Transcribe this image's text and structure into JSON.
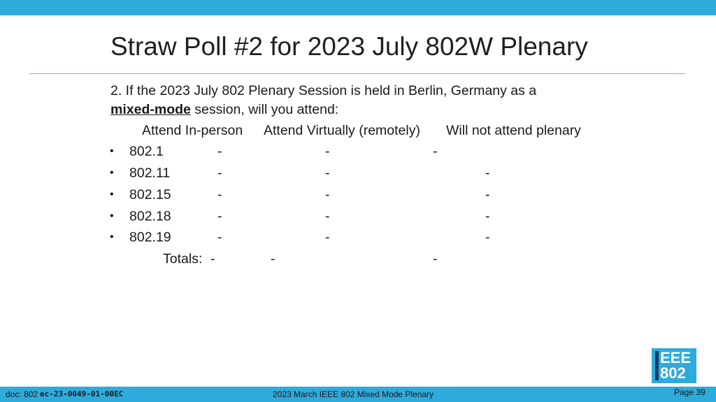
{
  "slide": {
    "title": "Straw Poll #2 for 2023 July 802W Plenary",
    "question_line1": "2. If the 2023 July 802 Plenary Session is held in Berlin, Germany as a",
    "question_emphasis": "mixed-mode",
    "question_line2_rest": " session, will you attend:",
    "columns": [
      "Attend In-person",
      "Attend Virtually (remotely)",
      "Will not attend plenary"
    ],
    "rows": [
      {
        "group": "802.1",
        "values": [
          "-",
          "-",
          "-"
        ]
      },
      {
        "group": "802.11",
        "values": [
          "-",
          "-",
          "-"
        ]
      },
      {
        "group": "802.15",
        "values": [
          "-",
          "-",
          "-"
        ]
      },
      {
        "group": "802.18",
        "values": [
          "-",
          "-",
          "-"
        ]
      },
      {
        "group": "802.19",
        "values": [
          "-",
          "-",
          "-"
        ]
      }
    ],
    "totals_label": "Totals:",
    "totals_values": [
      "-",
      "-",
      "-"
    ]
  },
  "logo": {
    "line1": "EEE",
    "line2": "802"
  },
  "footer": {
    "doc_label": "doc: 802",
    "doc_id": "ec-23-0049-01-00EC",
    "center": "2023 March IEEE 802 Mixed Mode Plenary",
    "page": "Page 39"
  },
  "colors": {
    "accent": "#2eaadc",
    "logo_bar": "#0f3f66"
  }
}
